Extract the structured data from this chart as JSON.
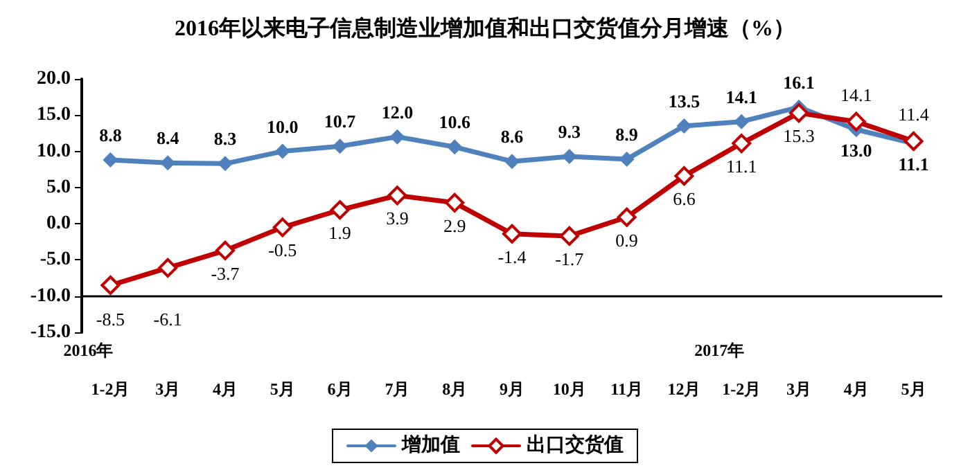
{
  "chart_data": {
    "type": "line",
    "title": "2016年以来电子信息制造业增加值和出口交货值分月增速（%）",
    "categories": [
      "1-2月",
      "3月",
      "4月",
      "5月",
      "6月",
      "7月",
      "8月",
      "9月",
      "10月",
      "11月",
      "12月",
      "1-2月",
      "3月",
      "4月",
      "5月"
    ],
    "series": [
      {
        "name": "增加值",
        "color": "#4f81bd",
        "marker": "diamond",
        "values": [
          8.8,
          8.4,
          8.3,
          10.0,
          10.7,
          12.0,
          10.6,
          8.6,
          9.3,
          8.9,
          13.5,
          14.1,
          16.1,
          13.0,
          11.1
        ],
        "value_labels": [
          "8.8",
          "8.4",
          "8.3",
          "10.0",
          "10.7",
          "12.0",
          "10.6",
          "8.6",
          "9.3",
          "8.9",
          "13.5",
          "14.1",
          "16.1",
          "13.0",
          "11.1"
        ]
      },
      {
        "name": "出口交货值",
        "color": "#c00000",
        "marker": "diamond",
        "values": [
          -8.5,
          -6.1,
          -3.7,
          -0.5,
          1.9,
          3.9,
          2.9,
          -1.4,
          -1.7,
          0.9,
          6.6,
          11.1,
          15.3,
          14.1,
          11.4
        ],
        "value_labels": [
          "-8.5",
          "-6.1",
          "-3.7",
          "-0.5",
          "1.9",
          "3.9",
          "2.9",
          "-1.4",
          "-1.7",
          "0.9",
          "6.6",
          "11.1",
          "15.3",
          "14.1",
          "11.4"
        ]
      }
    ],
    "ylim": [
      -15,
      20
    ],
    "yticks": [
      {
        "value": -15,
        "label": "-15.0"
      },
      {
        "value": -10,
        "label": "-10.0"
      },
      {
        "value": -5,
        "label": "-5.0"
      },
      {
        "value": 0,
        "label": "0.0"
      },
      {
        "value": 5,
        "label": "5.0"
      },
      {
        "value": 10,
        "label": "10.0"
      },
      {
        "value": 15,
        "label": "15.0"
      },
      {
        "value": 20,
        "label": "20.0"
      }
    ],
    "ref_lines": [
      {
        "axis": "y",
        "value": -10,
        "label": null,
        "color": "#000000"
      }
    ],
    "annotations": [
      "2016年",
      "2017年"
    ],
    "grid": false,
    "legend": "bottom",
    "line_style": "solid"
  }
}
